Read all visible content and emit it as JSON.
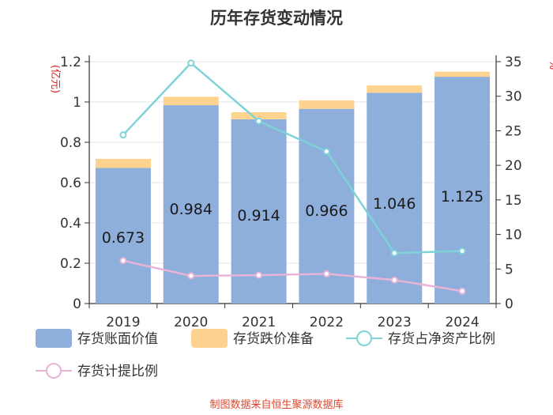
{
  "chart_data": {
    "type": "bar",
    "title": "历年存货变动情况",
    "categories": [
      "2019",
      "2020",
      "2021",
      "2022",
      "2023",
      "2024"
    ],
    "left_axis": {
      "unit": "(亿元)",
      "ylim": [
        0,
        1.2
      ],
      "ticks": [
        "0",
        "0.2",
        "0.4",
        "0.6",
        "0.8",
        "1",
        "1.2"
      ],
      "tick_values": [
        0,
        0.2,
        0.4,
        0.6,
        0.8,
        1.0,
        1.2
      ]
    },
    "right_axis": {
      "unit": "%",
      "ylim": [
        0,
        35
      ],
      "ticks": [
        "0",
        "5",
        "10",
        "15",
        "20",
        "25",
        "30",
        "35"
      ],
      "tick_values": [
        0,
        5,
        10,
        15,
        20,
        25,
        30,
        35
      ]
    },
    "series": [
      {
        "name": "存货账面价值",
        "kind": "bar",
        "stack": "inv",
        "axis": "left",
        "color": "#8eaedb",
        "values": [
          0.673,
          0.984,
          0.914,
          0.966,
          1.046,
          1.125
        ],
        "labels": [
          "0.673",
          "0.984",
          "0.914",
          "0.966",
          "1.046",
          "1.125"
        ]
      },
      {
        "name": "存货跌价准备",
        "kind": "bar",
        "stack": "inv",
        "axis": "left",
        "color": "#fdd38f",
        "values": [
          0.045,
          0.042,
          0.035,
          0.042,
          0.036,
          0.025
        ]
      },
      {
        "name": "存货占净资产比例",
        "kind": "line",
        "axis": "right",
        "color": "#7fd3d7",
        "values": [
          24.4,
          34.8,
          26.4,
          22.0,
          7.3,
          7.6
        ]
      },
      {
        "name": "存货计提比例",
        "kind": "line",
        "axis": "right",
        "color": "#e8b4d8",
        "values": [
          6.2,
          4.0,
          4.1,
          4.3,
          3.4,
          1.8
        ]
      }
    ],
    "source": "制图数据来自恒生聚源数据库"
  }
}
